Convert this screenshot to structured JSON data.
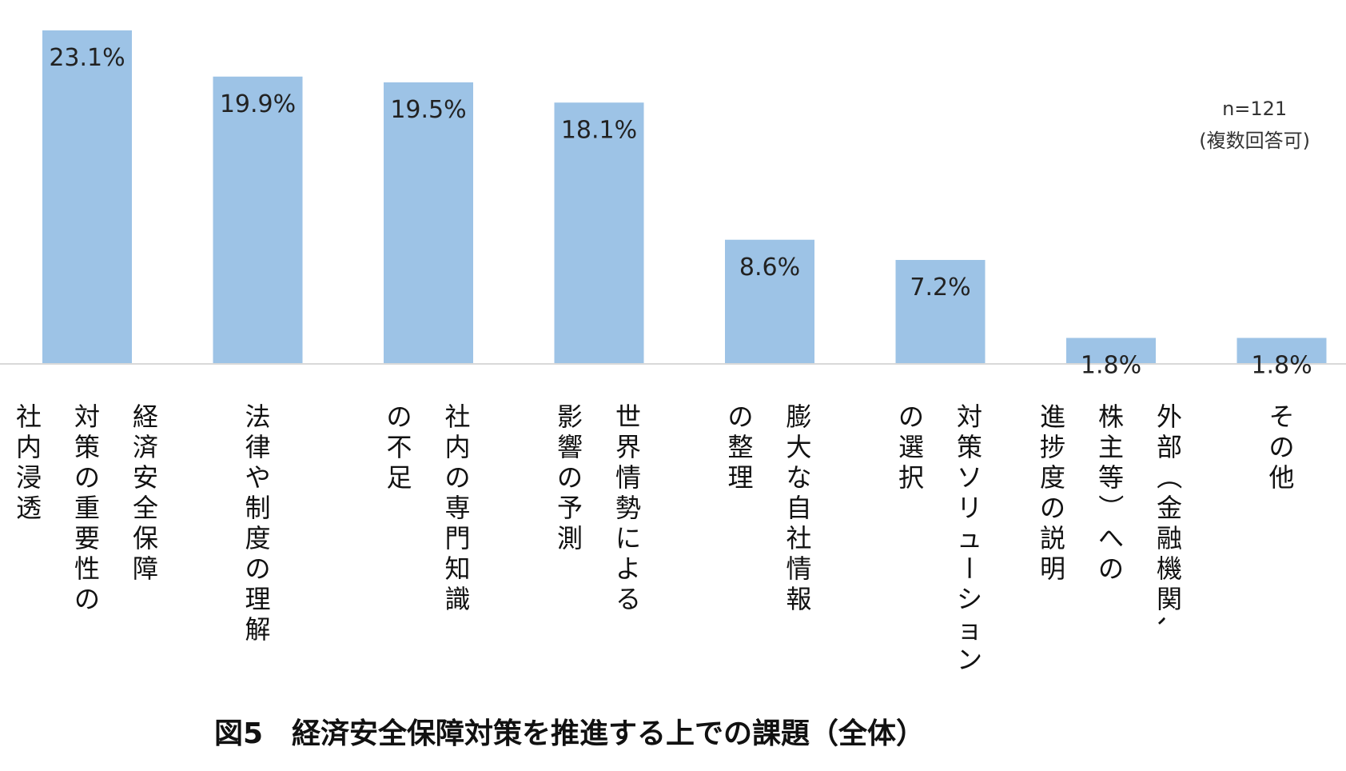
{
  "chart_data": {
    "type": "bar",
    "categories": [
      [
        "経済安全保障",
        "対策の重要性の",
        "社内浸透"
      ],
      [
        "法律や制度の理解"
      ],
      [
        "社内の専門知識",
        "の不足"
      ],
      [
        "世界情勢による",
        "影響の予測"
      ],
      [
        "膨大な自社情報",
        "の整理"
      ],
      [
        "対策ソリューション",
        "の選択"
      ],
      [
        "外部（金融機関、",
        "株主等）への",
        "進捗度の説明"
      ],
      [
        "その他"
      ]
    ],
    "values": [
      23.1,
      19.9,
      19.5,
      18.1,
      8.6,
      7.2,
      1.8,
      1.8
    ],
    "data_labels": [
      "23.1%",
      "19.9%",
      "19.5%",
      "18.1%",
      "8.6%",
      "7.2%",
      "1.8%",
      "1.8%"
    ],
    "ylim": [
      0,
      25
    ],
    "bar_color": "#9dc3e6",
    "axis_color": "#d9d9d9",
    "grid": false,
    "legend": "none"
  },
  "note": {
    "n": "n=121",
    "multi": "(複数回答可)"
  },
  "caption": "図5　経済安全保障対策を推進する上での課題（全体）"
}
